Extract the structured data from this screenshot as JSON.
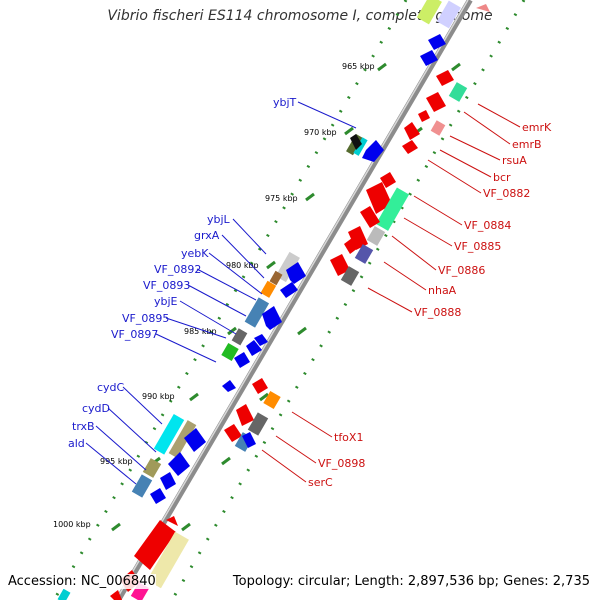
{
  "title": "Vibrio fischeri ES114 chromosome I, complete genome",
  "footer": {
    "accession": "Accession: NC_006840",
    "topology": "Topology: circular; Length: 2,897,536 bp; Genes: 2,735"
  },
  "ruler": {
    "ticks": [
      "965 kbp",
      "970 kbp",
      "975 kbp",
      "980 kbp",
      "985 kbp",
      "990 kbp",
      "995 kbp",
      "1000 kbp"
    ]
  },
  "labels_left": [
    "ybjT",
    "ybjL",
    "grxA",
    "yebK",
    "VF_0892",
    "VF_0893",
    "ybjE",
    "VF_0895",
    "VF_0897",
    "cydC",
    "cydD",
    "trxB",
    "ald"
  ],
  "labels_right": [
    "emrK",
    "emrB",
    "rsuA",
    "bcr",
    "VF_0882",
    "VF_0884",
    "VF_0885",
    "VF_0886",
    "nhaA",
    "VF_0888",
    "tfoX1",
    "VF_0898",
    "serC"
  ],
  "colors": {
    "backbone": "#808080",
    "tick": "#2e8b2e",
    "left_label": "#1a1acc",
    "right_label": "#cc1111",
    "forward_gene": "#0000ee",
    "reverse_gene": "#ee0000"
  }
}
